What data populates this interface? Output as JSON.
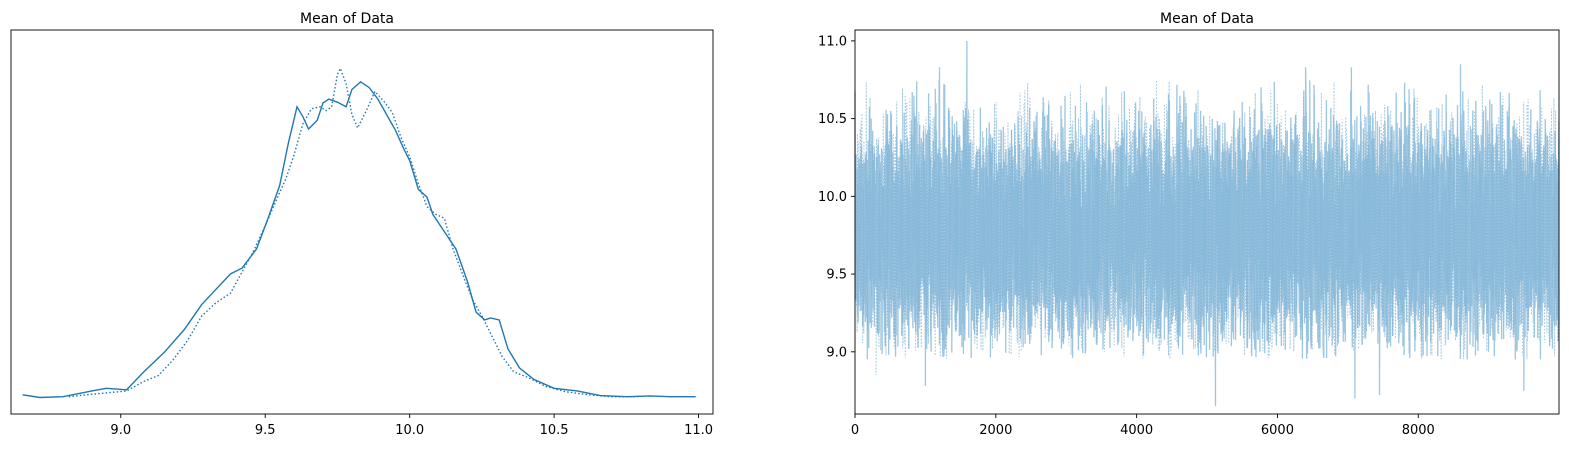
{
  "chart_data": [
    {
      "type": "line",
      "title": "Mean of Data",
      "xlabel": "",
      "ylabel": "",
      "xlim": [
        8.62,
        11.05
      ],
      "ylim": [
        0,
        1.0
      ],
      "yticks_visible": false,
      "xticks": [
        9.0,
        9.5,
        10.0,
        10.5,
        11.0
      ],
      "xtick_labels": [
        "9.0",
        "9.5",
        "10.0",
        "10.5",
        "11.0"
      ],
      "color": "#1f77b4",
      "series": [
        {
          "linestyle": "solid",
          "x": [
            8.66,
            8.72,
            8.8,
            8.9,
            8.95,
            9.02,
            9.08,
            9.15,
            9.22,
            9.28,
            9.33,
            9.38,
            9.42,
            9.47,
            9.51,
            9.55,
            9.58,
            9.61,
            9.63,
            9.65,
            9.68,
            9.7,
            9.72,
            9.75,
            9.78,
            9.8,
            9.83,
            9.86,
            9.89,
            9.92,
            9.95,
            9.98,
            10.0,
            10.03,
            10.06,
            10.08,
            10.12,
            10.16,
            10.2,
            10.23,
            10.26,
            10.28,
            10.31,
            10.34,
            10.38,
            10.43,
            10.5,
            10.58,
            10.66,
            10.75,
            10.83,
            10.9,
            10.99
          ],
          "y": [
            0.05,
            0.043,
            0.045,
            0.06,
            0.067,
            0.063,
            0.11,
            0.16,
            0.22,
            0.285,
            0.325,
            0.365,
            0.38,
            0.43,
            0.51,
            0.595,
            0.705,
            0.8,
            0.775,
            0.742,
            0.765,
            0.81,
            0.82,
            0.812,
            0.8,
            0.845,
            0.865,
            0.85,
            0.82,
            0.78,
            0.74,
            0.69,
            0.66,
            0.585,
            0.565,
            0.52,
            0.475,
            0.43,
            0.345,
            0.265,
            0.245,
            0.25,
            0.245,
            0.17,
            0.12,
            0.09,
            0.067,
            0.06,
            0.048,
            0.045,
            0.047,
            0.045,
            0.045
          ]
        },
        {
          "linestyle": "dotted",
          "x": [
            8.82,
            8.88,
            8.95,
            9.02,
            9.08,
            9.13,
            9.18,
            9.23,
            9.28,
            9.33,
            9.38,
            9.42,
            9.46,
            9.5,
            9.54,
            9.57,
            9.6,
            9.63,
            9.66,
            9.69,
            9.71,
            9.73,
            9.75,
            9.76,
            9.78,
            9.8,
            9.82,
            9.85,
            9.88,
            9.91,
            9.94,
            9.97,
            10.0,
            10.03,
            10.06,
            10.09,
            10.12,
            10.15,
            10.19,
            10.22,
            10.25,
            10.28,
            10.32,
            10.36,
            10.41,
            10.47,
            10.54,
            10.62,
            10.7,
            10.79
          ],
          "y": [
            0.045,
            0.05,
            0.055,
            0.06,
            0.085,
            0.1,
            0.14,
            0.19,
            0.255,
            0.29,
            0.315,
            0.37,
            0.425,
            0.49,
            0.56,
            0.61,
            0.675,
            0.755,
            0.795,
            0.8,
            0.79,
            0.8,
            0.885,
            0.9,
            0.86,
            0.78,
            0.745,
            0.79,
            0.84,
            0.815,
            0.785,
            0.72,
            0.67,
            0.6,
            0.54,
            0.52,
            0.51,
            0.43,
            0.35,
            0.295,
            0.255,
            0.21,
            0.15,
            0.11,
            0.095,
            0.072,
            0.058,
            0.05,
            0.045,
            0.045
          ]
        }
      ]
    },
    {
      "type": "line",
      "title": "Mean of Data",
      "xlabel": "",
      "ylabel": "",
      "xlim": [
        0,
        9999
      ],
      "ylim": [
        8.6,
        11.07
      ],
      "xticks": [
        0,
        2000,
        4000,
        6000,
        8000
      ],
      "xtick_labels": [
        "0",
        "2000",
        "4000",
        "6000",
        "8000"
      ],
      "yticks": [
        9.0,
        9.5,
        10.0,
        10.5,
        11.0
      ],
      "ytick_labels": [
        "9.0",
        "9.5",
        "10.0",
        "10.5",
        "11.0"
      ],
      "color": "#7fb3d5",
      "n_draws": 10000,
      "mean": 9.78,
      "std": 0.35,
      "series": [
        {
          "linestyle": "solid",
          "notable_peaks": [
            [
              1590,
              11.0
            ],
            [
              8600,
              10.85
            ],
            [
              1200,
              10.83
            ],
            [
              7050,
              10.83
            ],
            [
              6400,
              10.83
            ],
            [
              5120,
              8.65
            ],
            [
              7100,
              8.7
            ],
            [
              7450,
              8.72
            ],
            [
              1000,
              8.78
            ],
            [
              9500,
              8.75
            ]
          ]
        },
        {
          "linestyle": "dotted",
          "notable_peaks": [
            [
              2400,
              10.6
            ],
            [
              6000,
              10.6
            ],
            [
              300,
              8.85
            ]
          ]
        }
      ]
    }
  ]
}
